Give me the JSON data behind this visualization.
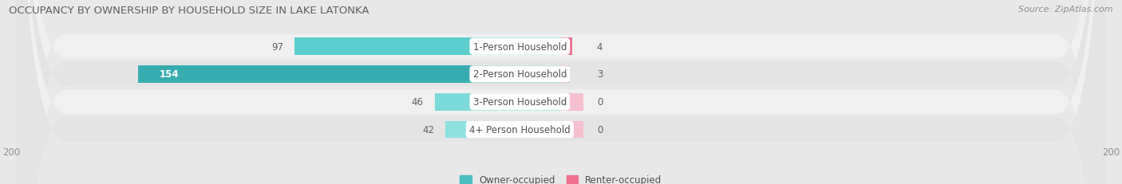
{
  "title": "OCCUPANCY BY OWNERSHIP BY HOUSEHOLD SIZE IN LAKE LATONKA",
  "source": "Source: ZipAtlas.com",
  "categories": [
    "1-Person Household",
    "2-Person Household",
    "3-Person Household",
    "4+ Person Household"
  ],
  "owner_values": [
    97,
    154,
    46,
    42
  ],
  "renter_values": [
    4,
    3,
    0,
    0
  ],
  "owner_color": "#4bbfbf",
  "renter_color": "#f07090",
  "renter_color_light": "#f5a0b8",
  "owner_label": "Owner-occupied",
  "renter_label": "Renter-occupied",
  "axis_max": 200,
  "axis_min": -200,
  "bg_color": "#e8e8e8",
  "row_bg_colors": [
    "#f0f0f0",
    "#e4e4e4"
  ],
  "title_color": "#606060",
  "label_color": "#505050",
  "value_color": "#606060",
  "tick_color": "#909090",
  "white_label_color": "#ffffff"
}
